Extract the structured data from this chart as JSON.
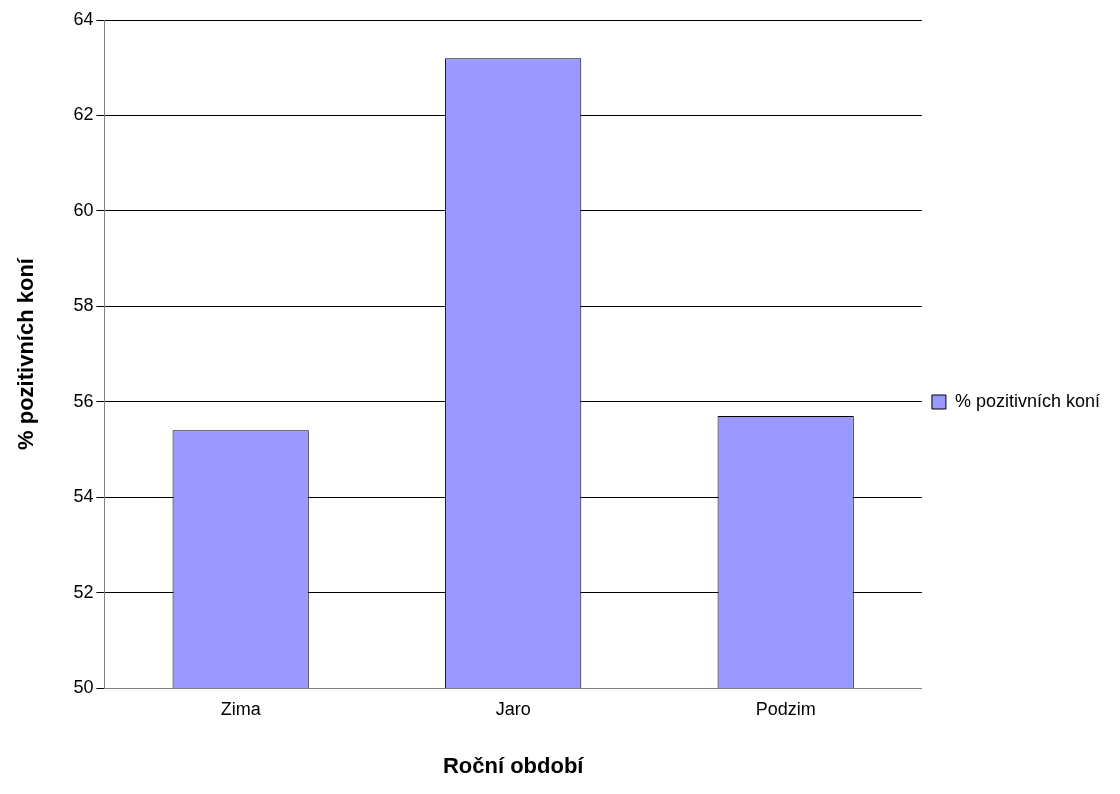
{
  "chart_data": {
    "type": "bar",
    "xlabel": "Roční období",
    "ylabel": "% pozitivních koní",
    "categories": [
      "Zima",
      "Jaro",
      "Podzim"
    ],
    "series": [
      {
        "name": "% pozitivních koní",
        "color": "#9999ff",
        "values": [
          55.4,
          63.2,
          55.7
        ]
      }
    ],
    "ylim": [
      50,
      64
    ],
    "yticks": [
      50,
      52,
      54,
      56,
      58,
      60,
      62,
      64
    ],
    "grid": "y",
    "legend": "right"
  }
}
